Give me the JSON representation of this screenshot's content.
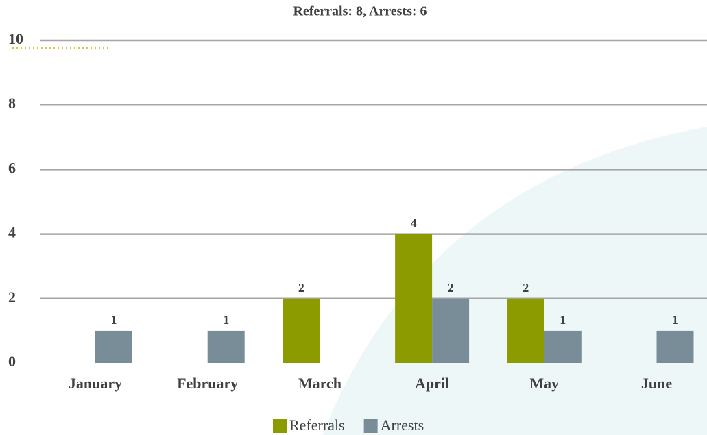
{
  "chart_data": {
    "type": "bar",
    "title": "Referrals: 8, Arrests: 6",
    "categories": [
      "January",
      "February",
      "March",
      "April",
      "May",
      "June"
    ],
    "series": [
      {
        "name": "Referrals",
        "color": "#8c9c00",
        "values": [
          null,
          null,
          2,
          4,
          2,
          null
        ]
      },
      {
        "name": "Arrests",
        "color": "#798d99",
        "values": [
          1,
          1,
          null,
          2,
          1,
          1
        ]
      }
    ],
    "ylim": [
      0,
      10
    ],
    "yticks": [
      0,
      2,
      4,
      6,
      8,
      10
    ],
    "grid": true,
    "legend": "bottom"
  }
}
